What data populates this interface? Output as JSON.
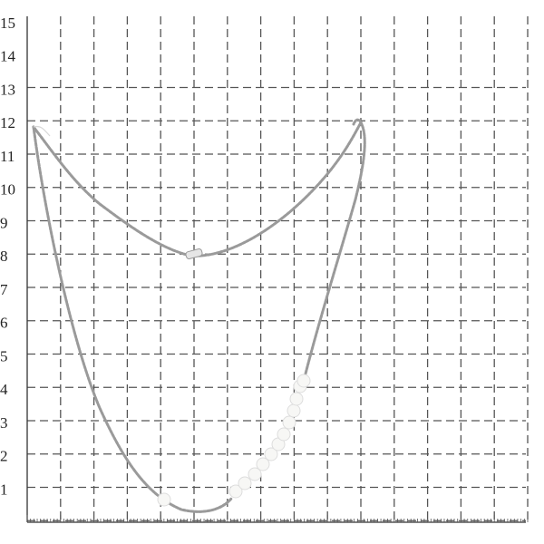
{
  "scale": {
    "labels": [
      1,
      2,
      3,
      4,
      5,
      6,
      7,
      8,
      9,
      10,
      11,
      12,
      13,
      14,
      15
    ]
  }
}
